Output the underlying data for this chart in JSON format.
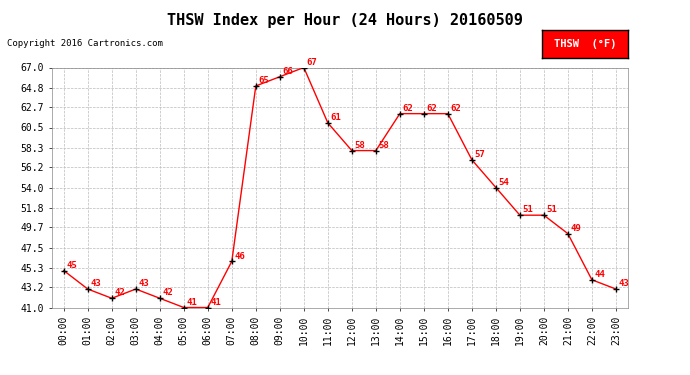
{
  "title": "THSW Index per Hour (24 Hours) 20160509",
  "copyright": "Copyright 2016 Cartronics.com",
  "legend_label": "THSW  (°F)",
  "hours": [
    "00:00",
    "01:00",
    "02:00",
    "03:00",
    "04:00",
    "05:00",
    "06:00",
    "07:00",
    "08:00",
    "09:00",
    "10:00",
    "11:00",
    "12:00",
    "13:00",
    "14:00",
    "15:00",
    "16:00",
    "17:00",
    "18:00",
    "19:00",
    "20:00",
    "21:00",
    "22:00",
    "23:00"
  ],
  "values": [
    45,
    43,
    42,
    43,
    42,
    41,
    41,
    46,
    65,
    66,
    67,
    61,
    58,
    58,
    62,
    62,
    62,
    57,
    54,
    51,
    51,
    49,
    44,
    43
  ],
  "ylim_min": 41.0,
  "ylim_max": 67.0,
  "yticks": [
    41.0,
    43.2,
    45.3,
    47.5,
    49.7,
    51.8,
    54.0,
    56.2,
    58.3,
    60.5,
    62.7,
    64.8,
    67.0
  ],
  "line_color": "red",
  "marker": "+",
  "marker_color": "black",
  "bg_color": "white",
  "grid_color": "#bbbbbb",
  "label_color": "red",
  "title_fontsize": 11,
  "label_fontsize": 6.5,
  "tick_fontsize": 7,
  "copyright_fontsize": 6.5,
  "legend_fontsize": 7.5
}
